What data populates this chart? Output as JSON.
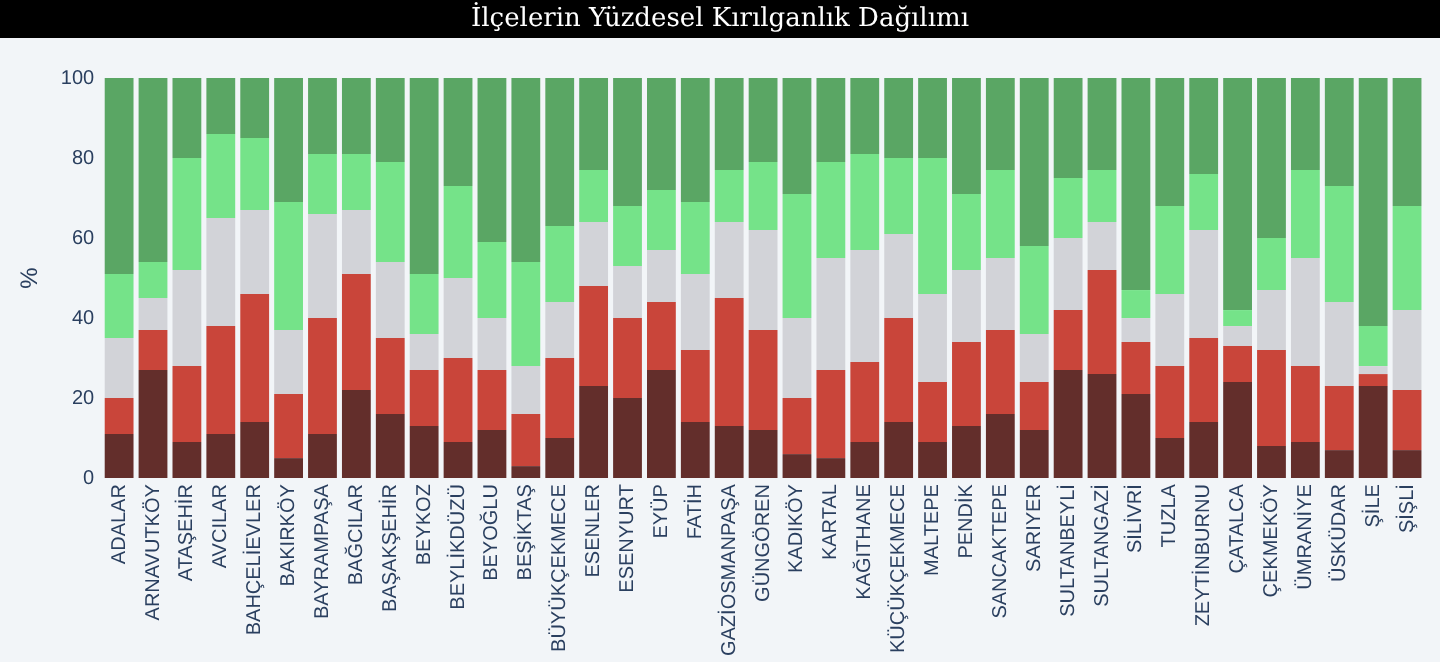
{
  "chart_data": {
    "type": "bar",
    "title": "İlçelerin Yüzdesel Kırılganlık Dağılımı",
    "ylabel": "%",
    "stacked": true,
    "legend": false,
    "grid": false,
    "categories": [
      "ADALAR",
      "ARNAVUTKÖY",
      "ATAŞEHİR",
      "AVCILAR",
      "BAHÇELİEVLER",
      "BAKIRKÖY",
      "BAYRAMPAŞA",
      "BAĞCILAR",
      "BAŞAKŞEHİR",
      "BEYKOZ",
      "BEYLİKDÜZÜ",
      "BEYOĞLU",
      "BEŞİKTAŞ",
      "BÜYÜKÇEKMECE",
      "ESENLER",
      "ESENYURT",
      "EYÜP",
      "FATİH",
      "GAZİOSMANPAŞA",
      "GÜNGÖREN",
      "KADIKÖY",
      "KARTAL",
      "KAĞITHANE",
      "KÜÇÜKÇEKMECE",
      "MALTEPE",
      "PENDİK",
      "SANCAKTEPE",
      "SARIYER",
      "SULTANBEYLİ",
      "SULTANGAZİ",
      "SİLİVRİ",
      "TUZLA",
      "ZEYTİNBURNU",
      "ÇATALCA",
      "ÇEKMEKÖY",
      "ÜMRANİYE",
      "ÜSKÜDAR",
      "ŞİLE",
      "ŞİŞLİ"
    ],
    "ylim": [
      0,
      100
    ],
    "yticks": [
      0,
      20,
      40,
      60,
      80,
      100
    ],
    "series": [
      {
        "color": "#632e2b",
        "values": [
          11,
          27,
          9,
          11,
          14,
          5,
          11,
          22,
          16,
          13,
          9,
          12,
          3,
          10,
          23,
          20,
          27,
          14,
          13,
          12,
          6,
          5,
          9,
          14,
          9,
          13,
          16,
          12,
          27,
          26,
          21,
          10,
          14,
          24,
          8,
          9,
          7,
          23,
          7
        ]
      },
      {
        "color": "#c9453a",
        "values": [
          9,
          10,
          19,
          27,
          32,
          16,
          29,
          29,
          19,
          14,
          21,
          15,
          13,
          20,
          25,
          20,
          17,
          18,
          32,
          25,
          14,
          22,
          20,
          26,
          15,
          21,
          21,
          12,
          15,
          26,
          13,
          18,
          21,
          9,
          24,
          19,
          16,
          3,
          15
        ]
      },
      {
        "color": "#d2d3d8",
        "values": [
          15,
          8,
          24,
          27,
          21,
          16,
          26,
          16,
          19,
          9,
          20,
          13,
          12,
          14,
          16,
          13,
          13,
          19,
          19,
          25,
          20,
          28,
          28,
          21,
          22,
          18,
          18,
          12,
          18,
          12,
          6,
          18,
          27,
          5,
          15,
          27,
          21,
          2,
          20
        ]
      },
      {
        "color": "#75e389",
        "values": [
          16,
          9,
          28,
          21,
          18,
          32,
          15,
          14,
          25,
          15,
          23,
          19,
          26,
          19,
          13,
          15,
          15,
          18,
          13,
          17,
          31,
          24,
          24,
          19,
          34,
          19,
          22,
          22,
          15,
          13,
          7,
          22,
          14,
          4,
          13,
          22,
          29,
          10,
          26
        ]
      },
      {
        "color": "#5aa664",
        "values": [
          49,
          46,
          20,
          14,
          15,
          31,
          19,
          19,
          21,
          49,
          27,
          41,
          46,
          37,
          23,
          32,
          28,
          31,
          23,
          21,
          29,
          21,
          19,
          20,
          20,
          29,
          23,
          42,
          25,
          23,
          53,
          32,
          24,
          58,
          40,
          23,
          27,
          62,
          32
        ]
      }
    ]
  }
}
